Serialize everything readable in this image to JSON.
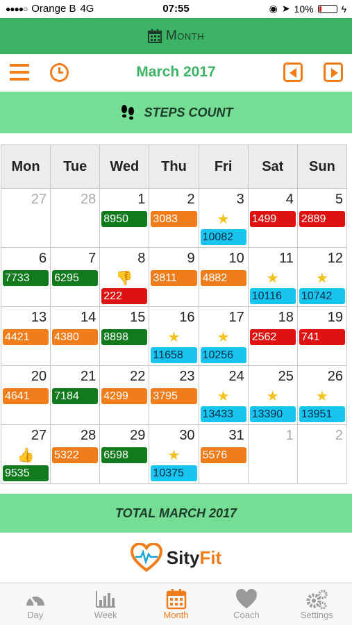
{
  "status_bar": {
    "signal": "●●●●○",
    "carrier": "Orange B",
    "network": "4G",
    "time": "07:55",
    "battery_percent": "10%",
    "battery_level": 0.1
  },
  "header": {
    "title": "Month",
    "icon": "calendar-icon"
  },
  "nav": {
    "month_label": "March 2017",
    "menu_icon": "hamburger-icon",
    "history_icon": "clock-icon",
    "prev_icon": "prev-arrow-icon",
    "next_icon": "next-arrow-icon"
  },
  "section": {
    "steps_title": "STEPS COUNT",
    "steps_icon": "footprints-icon",
    "total_title": "TOTAL MARCH 2017"
  },
  "calendar": {
    "weekdays": [
      "Mon",
      "Tue",
      "Wed",
      "Thu",
      "Fri",
      "Sat",
      "Sun"
    ],
    "weeks": [
      [
        {
          "day": "27",
          "dim": true
        },
        {
          "day": "28",
          "dim": true
        },
        {
          "day": "1",
          "steps": "8950",
          "color": "green"
        },
        {
          "day": "2",
          "steps": "3083",
          "color": "orange"
        },
        {
          "day": "3",
          "steps": "10082",
          "color": "blue",
          "icon": "star"
        },
        {
          "day": "4",
          "steps": "1499",
          "color": "red"
        },
        {
          "day": "5",
          "steps": "2889",
          "color": "red"
        }
      ],
      [
        {
          "day": "6",
          "steps": "7733",
          "color": "green"
        },
        {
          "day": "7",
          "steps": "6295",
          "color": "green"
        },
        {
          "day": "8",
          "steps": "222",
          "color": "red",
          "icon": "thumbs-down"
        },
        {
          "day": "9",
          "steps": "3811",
          "color": "orange"
        },
        {
          "day": "10",
          "steps": "4882",
          "color": "orange"
        },
        {
          "day": "11",
          "steps": "10116",
          "color": "blue",
          "icon": "star"
        },
        {
          "day": "12",
          "steps": "10742",
          "color": "blue",
          "icon": "star"
        }
      ],
      [
        {
          "day": "13",
          "steps": "4421",
          "color": "orange"
        },
        {
          "day": "14",
          "steps": "4380",
          "color": "orange"
        },
        {
          "day": "15",
          "steps": "8898",
          "color": "green"
        },
        {
          "day": "16",
          "steps": "11658",
          "color": "blue",
          "icon": "star"
        },
        {
          "day": "17",
          "steps": "10256",
          "color": "blue",
          "icon": "star"
        },
        {
          "day": "18",
          "steps": "2562",
          "color": "red"
        },
        {
          "day": "19",
          "steps": "741",
          "color": "red"
        }
      ],
      [
        {
          "day": "20",
          "steps": "4641",
          "color": "orange"
        },
        {
          "day": "21",
          "steps": "7184",
          "color": "green"
        },
        {
          "day": "22",
          "steps": "4299",
          "color": "orange"
        },
        {
          "day": "23",
          "steps": "3795",
          "color": "orange"
        },
        {
          "day": "24",
          "steps": "13433",
          "color": "blue",
          "icon": "star"
        },
        {
          "day": "25",
          "steps": "13390",
          "color": "blue",
          "icon": "star"
        },
        {
          "day": "26",
          "steps": "13951",
          "color": "blue",
          "icon": "star"
        }
      ],
      [
        {
          "day": "27",
          "steps": "9535",
          "color": "green",
          "icon": "thumbs-up"
        },
        {
          "day": "28",
          "steps": "5322",
          "color": "orange"
        },
        {
          "day": "29",
          "steps": "6598",
          "color": "green"
        },
        {
          "day": "30",
          "steps": "10375",
          "color": "blue",
          "icon": "star"
        },
        {
          "day": "31",
          "steps": "5576",
          "color": "orange"
        },
        {
          "day": "1",
          "dim": true
        },
        {
          "day": "2",
          "dim": true
        }
      ]
    ]
  },
  "logo": {
    "brand_first": "Sity",
    "brand_second": "Fit",
    "icon": "heart-pulse-icon"
  },
  "tabbar": {
    "tabs": [
      {
        "label": "Day",
        "icon": "speedometer-icon",
        "active": false
      },
      {
        "label": "Week",
        "icon": "bar-chart-icon",
        "active": false
      },
      {
        "label": "Month",
        "icon": "calendar-icon",
        "active": true
      },
      {
        "label": "Coach",
        "icon": "heart-icon",
        "active": false
      },
      {
        "label": "Settings",
        "icon": "gears-icon",
        "active": false
      }
    ]
  },
  "colors": {
    "green_header": "#3cb364",
    "light_green_band": "#76dd94",
    "accent_orange": "#f07d1a",
    "badge_green": "#107a1d",
    "badge_red": "#df1212",
    "badge_blue": "#18c5ef"
  }
}
